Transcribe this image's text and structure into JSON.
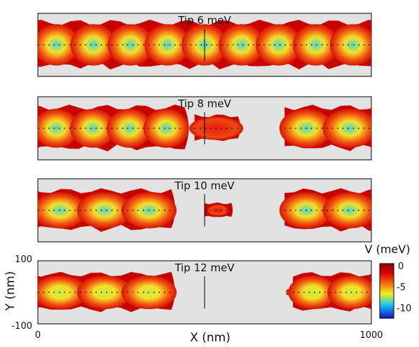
{
  "chart_data": {
    "type": "heatmap",
    "xlabel": "X (nm)",
    "ylabel": "Y (nm)",
    "xlim": [
      0,
      1000
    ],
    "ylim": [
      -100,
      100
    ],
    "x_ticks": [
      "0",
      "1000"
    ],
    "y_ticks": [
      "100",
      "-100"
    ],
    "colorbar": {
      "label": "V (meV)",
      "range": [
        -12,
        0
      ],
      "ticks": [
        "0",
        "-5",
        "-10"
      ],
      "colors": [
        "#1010c8",
        "#18c8f0",
        "#f0f018",
        "#f07810",
        "#c80000",
        "#8a0000"
      ]
    },
    "background_color": "#e2e2e2",
    "panels": [
      {
        "title": "Tip 6 meV",
        "regions": [
          {
            "x_start": 0,
            "x_end": 1000,
            "y_half_width": 80,
            "min_potential": -10
          }
        ],
        "constriction_x": 545
      },
      {
        "title": "Tip 8 meV",
        "regions": [
          {
            "x_start": 0,
            "x_end": 440,
            "y_half_width": 75,
            "min_potential": -9
          },
          {
            "x_start": 470,
            "x_end": 600,
            "y_half_width": 45,
            "min_potential": -2
          },
          {
            "x_start": 740,
            "x_end": 1000,
            "y_half_width": 75,
            "min_potential": -9
          }
        ]
      },
      {
        "title": "Tip 10 meV",
        "regions": [
          {
            "x_start": 0,
            "x_end": 400,
            "y_half_width": 70,
            "min_potential": -8
          },
          {
            "x_start": 500,
            "x_end": 580,
            "y_half_width": 25,
            "min_potential": -1
          },
          {
            "x_start": 740,
            "x_end": 1000,
            "y_half_width": 70,
            "min_potential": -8
          }
        ]
      },
      {
        "title": "Tip 12 meV",
        "regions": [
          {
            "x_start": 0,
            "x_end": 400,
            "y_half_width": 65,
            "min_potential": -7
          },
          {
            "x_start": 745,
            "x_end": 760,
            "y_half_width": 10,
            "min_potential": -1
          },
          {
            "x_start": 765,
            "x_end": 1000,
            "y_half_width": 65,
            "min_potential": -7
          }
        ]
      }
    ]
  }
}
